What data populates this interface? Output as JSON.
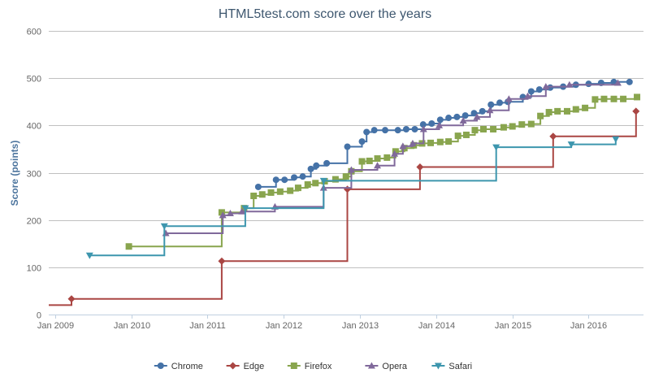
{
  "chart_data": {
    "type": "line",
    "step": true,
    "title": "HTML5test.com score over the years",
    "xlabel": "",
    "ylabel": "Score (points)",
    "ylim": [
      0,
      600
    ],
    "yticks": [
      0,
      100,
      200,
      300,
      400,
      500,
      600
    ],
    "xlim": [
      "2008-12-01",
      "2016-09-20"
    ],
    "xticks": [
      "Jan 2009",
      "Jan 2010",
      "Jan 2011",
      "Jan 2012",
      "Jan 2013",
      "Jan 2014",
      "Jan 2015",
      "Jan 2016"
    ],
    "grid": "horizontal",
    "legend": "bottom-center",
    "series": [
      {
        "name": "Chrome",
        "color": "#4572A7",
        "marker": "circle",
        "points": [
          [
            "2011-09-01",
            270
          ],
          [
            "2011-11-25",
            285
          ],
          [
            "2012-01-05",
            285
          ],
          [
            "2012-02-20",
            290
          ],
          [
            "2012-04-01",
            292
          ],
          [
            "2012-05-10",
            308
          ],
          [
            "2012-06-05",
            315
          ],
          [
            "2012-07-25",
            320
          ],
          [
            "2012-11-01",
            355
          ],
          [
            "2013-01-10",
            366
          ],
          [
            "2013-02-01",
            386
          ],
          [
            "2013-03-10",
            390
          ],
          [
            "2013-05-01",
            390
          ],
          [
            "2013-07-01",
            390
          ],
          [
            "2013-08-10",
            392
          ],
          [
            "2013-09-20",
            392
          ],
          [
            "2013-10-30",
            402
          ],
          [
            "2013-12-10",
            404
          ],
          [
            "2014-01-20",
            412
          ],
          [
            "2014-03-01",
            416
          ],
          [
            "2014-04-10",
            418
          ],
          [
            "2014-05-20",
            421
          ],
          [
            "2014-07-01",
            426
          ],
          [
            "2014-08-10",
            430
          ],
          [
            "2014-09-20",
            444
          ],
          [
            "2014-11-01",
            448
          ],
          [
            "2014-12-10",
            450
          ],
          [
            "2015-02-20",
            460
          ],
          [
            "2015-04-01",
            472
          ],
          [
            "2015-05-10",
            476
          ],
          [
            "2015-07-01",
            480
          ],
          [
            "2015-09-01",
            482
          ],
          [
            "2015-11-01",
            486
          ],
          [
            "2016-01-01",
            488
          ],
          [
            "2016-03-01",
            490
          ],
          [
            "2016-05-01",
            492
          ],
          [
            "2016-07-15",
            492
          ]
        ]
      },
      {
        "name": "Edge",
        "color": "#AA4643",
        "marker": "diamond",
        "points": [
          [
            "2008-12-01",
            20
          ],
          [
            "2009-03-20",
            33
          ],
          [
            "2011-03-10",
            113
          ],
          [
            "2012-11-01",
            265
          ],
          [
            "2013-10-15",
            312
          ],
          [
            "2015-07-15",
            377
          ],
          [
            "2016-08-15",
            430
          ]
        ]
      },
      {
        "name": "Firefox",
        "color": "#89A54E",
        "marker": "square",
        "points": [
          [
            "2009-12-20",
            144
          ],
          [
            "2011-03-10",
            216
          ],
          [
            "2011-06-25",
            225
          ],
          [
            "2011-08-10",
            251
          ],
          [
            "2011-09-20",
            254
          ],
          [
            "2011-11-01",
            258
          ],
          [
            "2011-12-15",
            260
          ],
          [
            "2012-02-01",
            262
          ],
          [
            "2012-03-10",
            268
          ],
          [
            "2012-04-25",
            275
          ],
          [
            "2012-06-01",
            278
          ],
          [
            "2012-07-15",
            282
          ],
          [
            "2012-09-05",
            286
          ],
          [
            "2012-10-25",
            292
          ],
          [
            "2012-11-20",
            303
          ],
          [
            "2013-01-10",
            324
          ],
          [
            "2013-02-15",
            325
          ],
          [
            "2013-03-25",
            330
          ],
          [
            "2013-05-10",
            332
          ],
          [
            "2013-06-20",
            345
          ],
          [
            "2013-08-01",
            352
          ],
          [
            "2013-09-15",
            358
          ],
          [
            "2013-10-25",
            362
          ],
          [
            "2013-12-05",
            363
          ],
          [
            "2014-01-20",
            365
          ],
          [
            "2014-03-01",
            366
          ],
          [
            "2014-04-15",
            378
          ],
          [
            "2014-05-25",
            380
          ],
          [
            "2014-07-05",
            390
          ],
          [
            "2014-08-15",
            392
          ],
          [
            "2014-10-01",
            392
          ],
          [
            "2014-11-20",
            396
          ],
          [
            "2015-01-01",
            398
          ],
          [
            "2015-02-15",
            402
          ],
          [
            "2015-04-01",
            403
          ],
          [
            "2015-05-15",
            420
          ],
          [
            "2015-06-25",
            428
          ],
          [
            "2015-08-05",
            430
          ],
          [
            "2015-09-20",
            430
          ],
          [
            "2015-11-01",
            434
          ],
          [
            "2015-12-15",
            437
          ],
          [
            "2016-02-01",
            455
          ],
          [
            "2016-03-15",
            456
          ],
          [
            "2016-05-01",
            456
          ],
          [
            "2016-06-15",
            456
          ],
          [
            "2016-08-20",
            460
          ]
        ]
      },
      {
        "name": "Opera",
        "color": "#80699B",
        "marker": "triangle",
        "points": [
          [
            "2010-06-15",
            172
          ],
          [
            "2011-03-15",
            210
          ],
          [
            "2011-04-20",
            214
          ],
          [
            "2011-06-15",
            218
          ],
          [
            "2011-11-20",
            228
          ],
          [
            "2012-07-10",
            268
          ],
          [
            "2012-11-20",
            306
          ],
          [
            "2013-03-25",
            315
          ],
          [
            "2013-06-15",
            340
          ],
          [
            "2013-07-25",
            356
          ],
          [
            "2013-09-10",
            362
          ],
          [
            "2013-11-01",
            392
          ],
          [
            "2014-01-15",
            400
          ],
          [
            "2014-05-10",
            410
          ],
          [
            "2014-07-15",
            418
          ],
          [
            "2014-09-15",
            432
          ],
          [
            "2014-12-15",
            456
          ],
          [
            "2015-03-15",
            462
          ],
          [
            "2015-06-10",
            482
          ],
          [
            "2015-10-01",
            486
          ],
          [
            "2016-05-20",
            490
          ]
        ]
      },
      {
        "name": "Safari",
        "color": "#3D96AE",
        "marker": "triangle-down",
        "points": [
          [
            "2009-06-15",
            125
          ],
          [
            "2010-06-08",
            187
          ],
          [
            "2011-07-01",
            225
          ],
          [
            "2012-07-10",
            283
          ],
          [
            "2014-10-15",
            354
          ],
          [
            "2015-10-10",
            360
          ],
          [
            "2016-05-10",
            371
          ]
        ]
      }
    ]
  }
}
